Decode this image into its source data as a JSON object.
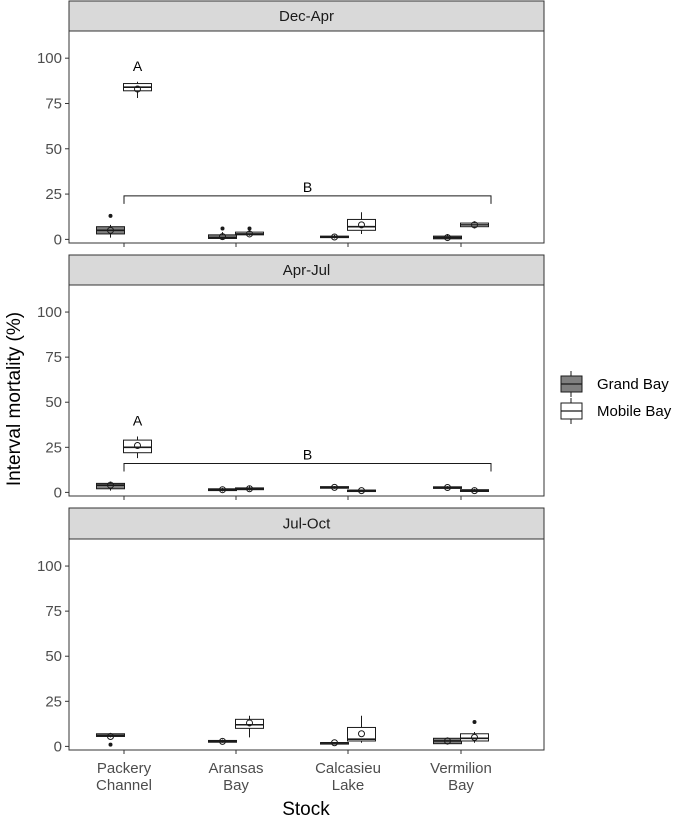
{
  "chart_data": {
    "type": "box",
    "xlabel": "Stock",
    "ylabel": "Interval mortality (%)",
    "ylim": [
      -2,
      115
    ],
    "yticks": [
      0,
      25,
      50,
      75,
      100
    ],
    "categories": [
      [
        "Packery",
        "Channel"
      ],
      [
        "Aransas",
        "Bay"
      ],
      [
        "Calcasieu",
        "Lake"
      ],
      [
        "Vermilion",
        "Bay"
      ]
    ],
    "legend": {
      "position": "right",
      "entries": [
        {
          "name": "Grand Bay",
          "color": "#808080"
        },
        {
          "name": "Mobile Bay",
          "color": "#ffffff"
        }
      ]
    },
    "panels": [
      {
        "title": "Dec-Apr",
        "boxes": [
          {
            "category": 0,
            "series": 0,
            "whislo": 1,
            "q1": 3,
            "med": 5,
            "q3": 7,
            "whishi": 8,
            "mean": 5,
            "outliers": [
              13
            ]
          },
          {
            "category": 0,
            "series": 1,
            "whislo": 78,
            "q1": 82,
            "med": 84,
            "q3": 86,
            "whishi": 87,
            "mean": 83,
            "outliers": []
          },
          {
            "category": 1,
            "series": 0,
            "whislo": 0,
            "q1": 0.5,
            "med": 1,
            "q3": 2.5,
            "whishi": 4,
            "mean": 1.5,
            "outliers": [
              6
            ]
          },
          {
            "category": 1,
            "series": 1,
            "whislo": 2,
            "q1": 2.5,
            "med": 3,
            "q3": 4,
            "whishi": 5,
            "mean": 3,
            "outliers": [
              6
            ]
          },
          {
            "category": 2,
            "series": 0,
            "whislo": 0.5,
            "q1": 1,
            "med": 1.2,
            "q3": 1.8,
            "whishi": 2.5,
            "mean": 1.3,
            "outliers": []
          },
          {
            "category": 2,
            "series": 1,
            "whislo": 3,
            "q1": 5,
            "med": 7,
            "q3": 11,
            "whishi": 15,
            "mean": 8,
            "outliers": []
          },
          {
            "category": 3,
            "series": 0,
            "whislo": 0,
            "q1": 0.3,
            "med": 1,
            "q3": 1.8,
            "whishi": 3,
            "mean": 1,
            "outliers": []
          },
          {
            "category": 3,
            "series": 1,
            "whislo": 6,
            "q1": 7,
            "med": 8,
            "q3": 9,
            "whishi": 10,
            "mean": 8,
            "outliers": []
          }
        ],
        "annotations": [
          {
            "text": "A",
            "category": 0,
            "series": 1,
            "y": 93,
            "type": "label"
          },
          {
            "text": "B",
            "from_category": 0,
            "to_category": 3,
            "y": 24,
            "type": "bracket"
          }
        ]
      },
      {
        "title": "Apr-Jul",
        "boxes": [
          {
            "category": 0,
            "series": 0,
            "whislo": 1,
            "q1": 2,
            "med": 4,
            "q3": 5,
            "whishi": 6,
            "mean": 4,
            "outliers": []
          },
          {
            "category": 0,
            "series": 1,
            "whislo": 19,
            "q1": 22,
            "med": 25,
            "q3": 29,
            "whishi": 31,
            "mean": 26,
            "outliers": []
          },
          {
            "category": 1,
            "series": 0,
            "whislo": 0.5,
            "q1": 1,
            "med": 1.5,
            "q3": 2,
            "whishi": 2.5,
            "mean": 1.5,
            "outliers": []
          },
          {
            "category": 1,
            "series": 1,
            "whislo": 1,
            "q1": 1.5,
            "med": 2,
            "q3": 2.5,
            "whishi": 3.5,
            "mean": 2,
            "outliers": []
          },
          {
            "category": 2,
            "series": 0,
            "whislo": 2,
            "q1": 2.3,
            "med": 2.7,
            "q3": 3.2,
            "whishi": 3.5,
            "mean": 2.8,
            "outliers": []
          },
          {
            "category": 2,
            "series": 1,
            "whislo": 0.5,
            "q1": 0.8,
            "med": 1,
            "q3": 1.3,
            "whishi": 1.6,
            "mean": 1,
            "outliers": []
          },
          {
            "category": 3,
            "series": 0,
            "whislo": 1.8,
            "q1": 2.2,
            "med": 2.7,
            "q3": 3.1,
            "whishi": 3.5,
            "mean": 2.7,
            "outliers": []
          },
          {
            "category": 3,
            "series": 1,
            "whislo": 0.2,
            "q1": 0.5,
            "med": 1,
            "q3": 1.5,
            "whishi": 2,
            "mean": 1,
            "outliers": []
          }
        ],
        "annotations": [
          {
            "text": "A",
            "category": 0,
            "series": 1,
            "y": 37,
            "type": "label"
          },
          {
            "text": "B",
            "from_category": 0,
            "to_category": 3,
            "y": 16,
            "type": "bracket"
          }
        ]
      },
      {
        "title": "Jul-Oct",
        "boxes": [
          {
            "category": 0,
            "series": 0,
            "whislo": 5,
            "q1": 5.5,
            "med": 6,
            "q3": 7,
            "whishi": 7.5,
            "mean": 5.5,
            "outliers": [
              1
            ]
          },
          {
            "category": 1,
            "series": 0,
            "whislo": 2,
            "q1": 2.3,
            "med": 2.8,
            "q3": 3.3,
            "whishi": 3.8,
            "mean": 2.8,
            "outliers": []
          },
          {
            "category": 1,
            "series": 1,
            "whislo": 5,
            "q1": 10,
            "med": 12,
            "q3": 15,
            "whishi": 17,
            "mean": 13,
            "outliers": []
          },
          {
            "category": 2,
            "series": 0,
            "whislo": 1.8,
            "q1": 1.9,
            "med": 2,
            "q3": 2.1,
            "whishi": 2.2,
            "mean": 2,
            "outliers": []
          },
          {
            "category": 2,
            "series": 1,
            "whislo": 2,
            "q1": 3,
            "med": 4,
            "q3": 10.5,
            "whishi": 17,
            "mean": 7,
            "outliers": []
          },
          {
            "category": 3,
            "series": 0,
            "whislo": 1,
            "q1": 1.5,
            "med": 3,
            "q3": 4.5,
            "whishi": 5,
            "mean": 3,
            "outliers": []
          },
          {
            "category": 3,
            "series": 1,
            "whislo": 2,
            "q1": 3,
            "med": 4.5,
            "q3": 7,
            "whishi": 8,
            "mean": 5,
            "outliers": [
              13.5
            ]
          }
        ],
        "annotations": []
      }
    ]
  }
}
